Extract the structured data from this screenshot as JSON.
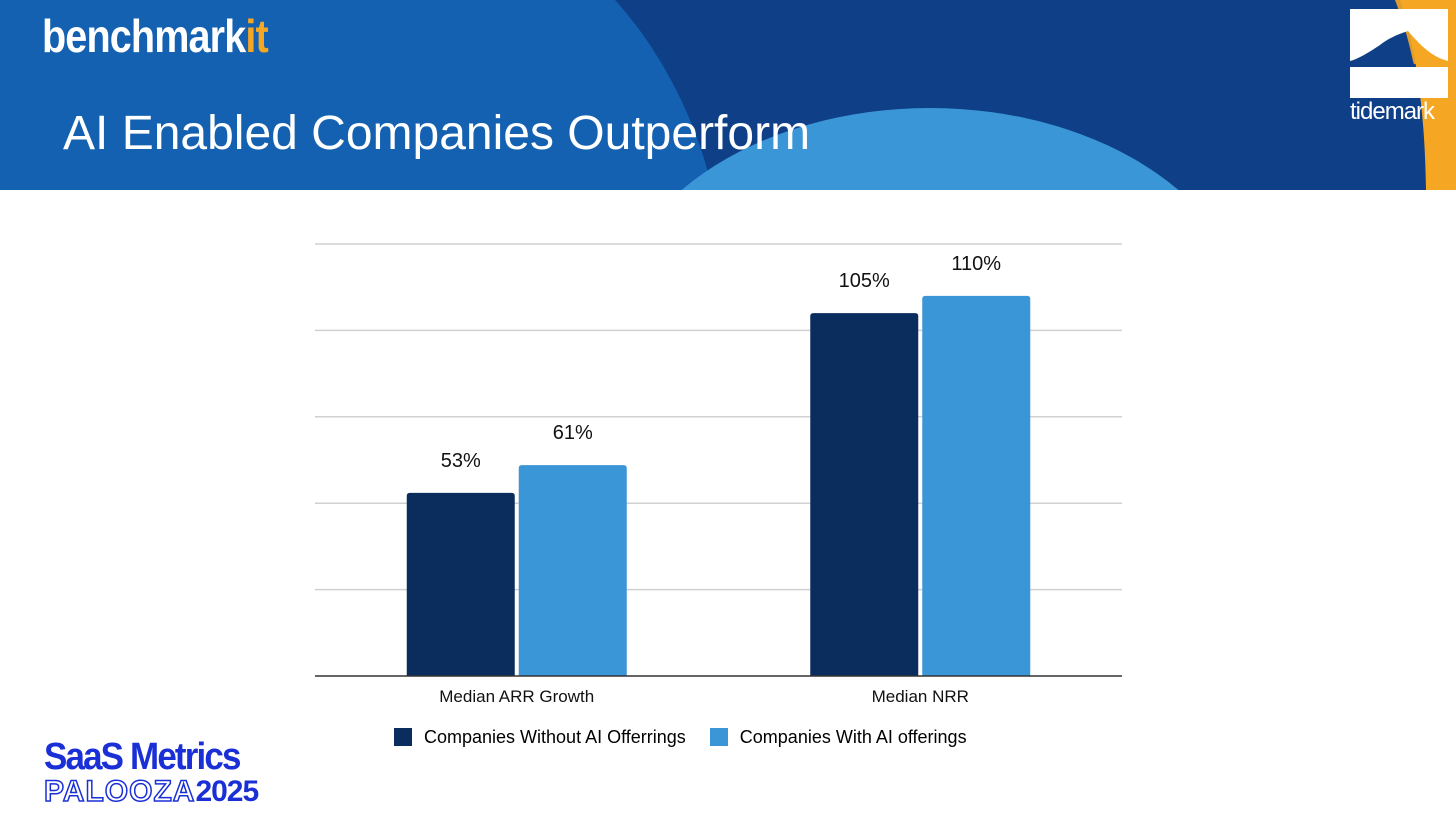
{
  "header": {
    "brand_main": "benchmark",
    "brand_accent": "it",
    "title": "AI Enabled Companies Outperform",
    "partner_logo": "tidemark"
  },
  "footer": {
    "logo_line1": "SaaS Metrics",
    "logo_line2_outline": "PALOOZA",
    "logo_line2_year": "2025"
  },
  "colors": {
    "header_blue": "#1361b0",
    "header_dark": "#0f3f86",
    "header_light": "#3a96d6",
    "accent_orange": "#f5a623",
    "series_dark": "#0a2d5e",
    "series_light": "#3a96d6"
  },
  "chart_data": {
    "type": "bar",
    "title": "",
    "xlabel": "",
    "ylabel": "",
    "ylim": [
      0,
      125
    ],
    "grid": true,
    "legend_position": "bottom",
    "categories": [
      "Median ARR Growth",
      "Median NRR"
    ],
    "series": [
      {
        "name": "Companies Without AI Offerrings",
        "values": [
          53,
          105
        ],
        "labels": [
          "53%",
          "105%"
        ],
        "color": "#0a2d5e"
      },
      {
        "name": "Companies With AI offerings",
        "values": [
          61,
          110
        ],
        "labels": [
          "61%",
          "110%"
        ],
        "color": "#3a96d6"
      }
    ]
  }
}
